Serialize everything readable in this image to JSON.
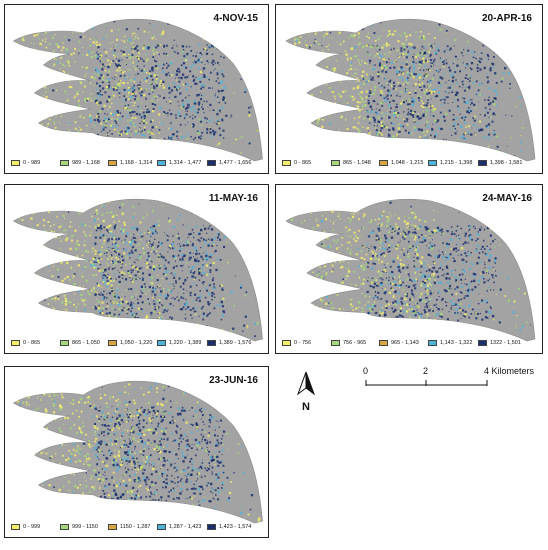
{
  "panels": [
    {
      "title": "4-NOV-15",
      "legend": [
        "0 - 989",
        "989 - 1,168",
        "1,168 - 1,314",
        "1,314 - 1,477",
        "1,477 - 1,656"
      ]
    },
    {
      "title": "20-APR-16",
      "legend": [
        "0 - 865",
        "865 - 1,048",
        "1,048 - 1,215",
        "1,215 - 1,398",
        "1,398 - 1,581"
      ]
    },
    {
      "title": "11-MAY-16",
      "legend": [
        "0 - 865",
        "865 - 1,050",
        "1,050 - 1,220",
        "1,220 - 1,389",
        "1,389 - 1,576"
      ]
    },
    {
      "title": "24-MAY-16",
      "legend": [
        "0 - 756",
        "756 - 965",
        "965 - 1,143",
        "1,143 - 1,322",
        "1322 - 1,501"
      ]
    },
    {
      "title": "23-JUN-16",
      "legend": [
        "0 - 999",
        "999 - 1150",
        "1150 - 1,287",
        "1,287 - 1,423",
        "1,423 - 1,574"
      ]
    }
  ],
  "legend_colors": [
    "#f2ee6a",
    "#a8d67a",
    "#d9a640",
    "#4db3d9",
    "#1b2f6e"
  ],
  "land_color": "#a3a3a3",
  "north_arrow": {
    "label": "N"
  },
  "scale_bar": {
    "ticks": [
      "0",
      "2",
      "4 Kilometers"
    ]
  }
}
